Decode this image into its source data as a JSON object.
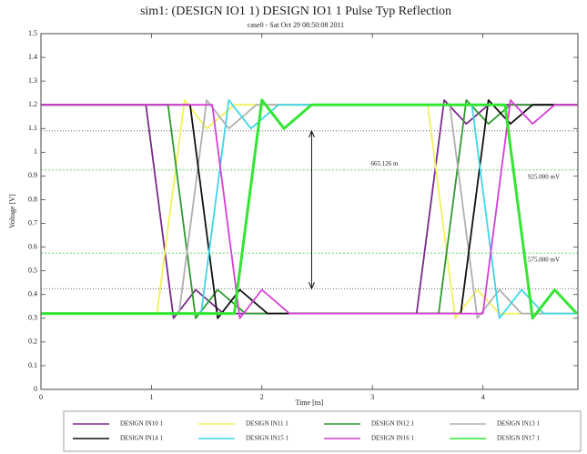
{
  "chart_data": {
    "type": "line",
    "title": "sim1: (DESIGN IO1 1) DESIGN IO1 1 Pulse Typ Reflection",
    "subtitle": "case0 - Sat Oct 29 08:50:08 2011",
    "x_label": "Time [ns]",
    "y_label": "Voltage [V]",
    "xlim": [
      0,
      4.86
    ],
    "ylim": [
      0,
      1.5
    ],
    "xticks": [
      0,
      1,
      2,
      3,
      4
    ],
    "yticks": [
      0,
      0.1,
      0.2,
      0.3,
      0.4,
      0.5,
      0.6,
      0.7,
      0.8,
      0.9,
      1,
      1.1,
      1.2,
      1.3,
      1.4,
      1.5
    ],
    "thresholds": [
      {
        "value": 0.925,
        "label": "925.000 mV",
        "color": "#33cc33"
      },
      {
        "value": 0.575,
        "label": "575.000 mV",
        "color": "#33cc33"
      }
    ],
    "markers": [
      {
        "value": 1.09,
        "color": "#333333"
      },
      {
        "value": 0.425,
        "color": "#333333"
      }
    ],
    "measure": {
      "x": 2.45,
      "label": "665.126 m"
    },
    "series": [
      {
        "name": "DESIGN IN10 1",
        "color": "#7a2a8a",
        "x": [
          0,
          0.95,
          1.2,
          1.4,
          1.65,
          3.4,
          3.65,
          3.85,
          4.05,
          4.85
        ],
        "values": [
          1.2,
          1.2,
          0.3,
          0.42,
          0.32,
          0.32,
          1.22,
          1.12,
          1.2,
          1.2
        ]
      },
      {
        "name": "DESIGN IN11 1",
        "color": "#f2f25a",
        "x": [
          0,
          1.05,
          1.3,
          1.5,
          1.75,
          3.5,
          3.75,
          3.95,
          4.15,
          4.85
        ],
        "values": [
          0.32,
          0.32,
          1.22,
          1.1,
          1.2,
          1.2,
          0.3,
          0.42,
          0.32,
          0.32
        ]
      },
      {
        "name": "DESIGN IN12 1",
        "color": "#2e9a2e",
        "x": [
          0,
          1.15,
          1.4,
          1.6,
          1.85,
          3.6,
          3.85,
          4.05,
          4.25,
          4.85
        ],
        "values": [
          1.2,
          1.2,
          0.3,
          0.42,
          0.32,
          0.32,
          1.22,
          1.12,
          1.2,
          1.2
        ]
      },
      {
        "name": "DESIGN IN13 1",
        "color": "#b0b0b0",
        "x": [
          0,
          1.25,
          1.5,
          1.7,
          1.95,
          3.7,
          3.95,
          4.15,
          4.35,
          4.85
        ],
        "values": [
          0.32,
          0.32,
          1.22,
          1.1,
          1.2,
          1.2,
          0.3,
          0.42,
          0.32,
          0.32
        ]
      },
      {
        "name": "DESIGN IN14 1",
        "color": "#111111",
        "x": [
          0,
          1.35,
          1.6,
          1.8,
          2.05,
          3.8,
          4.05,
          4.25,
          4.45,
          4.85
        ],
        "values": [
          1.2,
          1.2,
          0.3,
          0.42,
          0.32,
          0.32,
          1.22,
          1.12,
          1.2,
          1.2
        ]
      },
      {
        "name": "DESIGN IN15 1",
        "color": "#3fd6e6",
        "x": [
          0,
          1.45,
          1.7,
          1.9,
          2.15,
          3.9,
          4.15,
          4.35,
          4.55,
          4.85
        ],
        "values": [
          0.32,
          0.32,
          1.22,
          1.1,
          1.2,
          1.2,
          0.3,
          0.42,
          0.32,
          0.32
        ]
      },
      {
        "name": "DESIGN IN16 1",
        "color": "#d63fd6",
        "x": [
          0,
          1.55,
          1.8,
          2.0,
          2.25,
          4.0,
          4.25,
          4.45,
          4.65,
          4.85
        ],
        "values": [
          1.2,
          1.2,
          0.3,
          0.42,
          0.32,
          0.32,
          1.22,
          1.12,
          1.2,
          1.2
        ]
      },
      {
        "name": "DESIGN IN17 1",
        "color": "#33e633",
        "x": [
          0,
          1.75,
          2.0,
          2.2,
          2.45,
          4.2,
          4.45,
          4.65,
          4.85
        ],
        "values": [
          0.32,
          0.32,
          1.22,
          1.1,
          1.2,
          1.2,
          0.3,
          0.42,
          0.32
        ]
      }
    ]
  }
}
